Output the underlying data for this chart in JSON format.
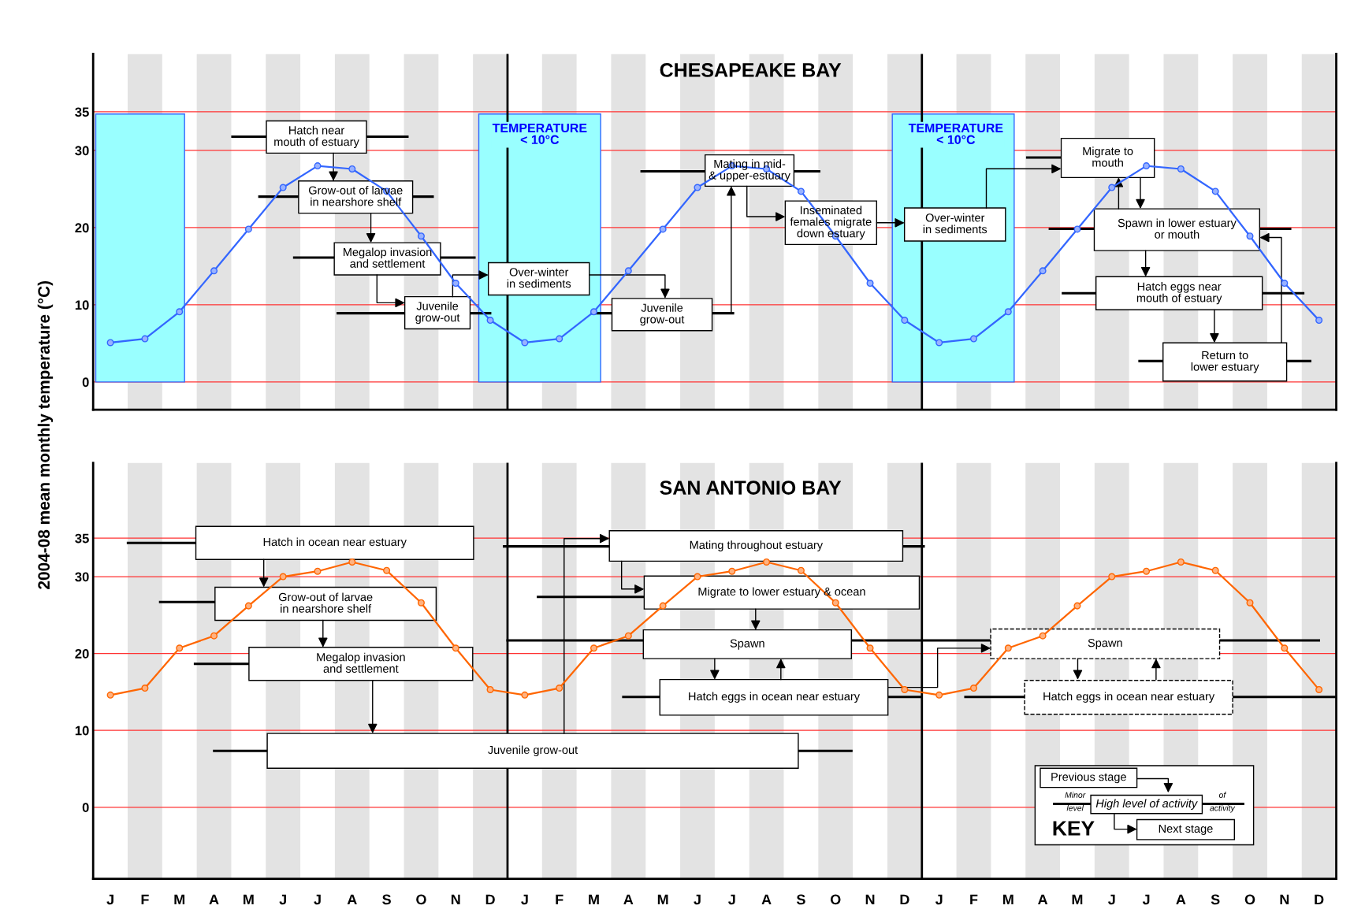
{
  "chart_data": [
    {
      "type": "line",
      "title": "CHESAPEAKE BAY",
      "ylabel": "2004-08 mean monthly temperature (°C)",
      "categories": [
        null,
        null,
        null,
        null,
        null,
        null,
        null,
        null,
        null,
        null,
        null,
        null,
        null,
        null,
        null,
        null,
        null,
        null,
        null,
        null,
        null,
        null,
        null,
        null,
        null,
        null,
        null,
        null,
        null,
        null,
        null,
        null,
        null,
        null,
        null,
        null
      ],
      "tick_labels": "y",
      "ylim": [
        -3.6,
        42.5
      ],
      "yticks": [
        0,
        10,
        20,
        30,
        35
      ],
      "grid": "y",
      "marker": "circle",
      "series": [
        {
          "color": "#3366ff",
          "values": [
            5.1,
            5.6,
            9.1,
            14.4,
            19.8,
            25.2,
            28.0,
            27.6,
            24.7,
            18.9,
            12.8,
            8.0,
            5.1,
            5.6,
            9.1,
            14.4,
            19.8,
            25.2,
            28.0,
            27.6,
            24.7,
            18.9,
            12.8,
            8.0,
            5.1,
            5.6,
            9.1,
            14.4,
            19.8,
            25.2,
            28.0,
            27.6,
            24.7,
            18.9,
            12.8,
            8.0
          ]
        }
      ],
      "annotations": [
        "Hatch near\nmouth of estuary",
        "Grow-out of larvae\nin nearshore shelf",
        "Megalop invasion\nand settlement",
        "Juvenile\ngrow-out",
        "Over-winter\nin sediments",
        "Juvenile\ngrow-out",
        "Mating in mid-\n& upper-estuary",
        "Inseminated\nfemales migrate\ndown estuary",
        "Over-winter\nin sediments",
        "Migrate to\nmouth",
        "Spawn in lower estuary\nor mouth",
        "Hatch eggs near\nmouth of estuary",
        "Return to\nlower estuary",
        "TEMPERATURE\n< 10°C",
        "TEMPERATURE\n< 10°C"
      ]
    },
    {
      "type": "line",
      "title": "SAN ANTONIO BAY",
      "categories": [
        "J",
        "F",
        "M",
        "A",
        "M",
        "J",
        "J",
        "A",
        "S",
        "O",
        "N",
        "D",
        "J",
        "F",
        "M",
        "A",
        "M",
        "J",
        "J",
        "A",
        "S",
        "O",
        "N",
        "D",
        "J",
        "F",
        "M",
        "A",
        "M",
        "J",
        "J",
        "A",
        "S",
        "O",
        "N",
        "D"
      ],
      "ylim": [
        -9.3,
        44.8
      ],
      "yticks": [
        0,
        10,
        20,
        30,
        35
      ],
      "grid": "y",
      "marker": "circle",
      "series": [
        {
          "color": "#ff6600",
          "values": [
            14.6,
            15.5,
            20.7,
            22.3,
            26.2,
            30.0,
            30.7,
            31.9,
            30.8,
            26.6,
            20.7,
            15.3,
            14.6,
            15.5,
            20.7,
            22.3,
            26.2,
            30.0,
            30.7,
            31.9,
            30.8,
            26.6,
            20.7,
            15.3,
            14.6,
            15.5,
            20.7,
            22.3,
            26.2,
            30.0,
            30.7,
            31.9,
            30.8,
            26.6,
            20.7,
            15.3
          ]
        }
      ],
      "annotations": [
        "Hatch in ocean near estuary",
        "Grow-out of larvae\nin nearshore shelf",
        "Megalop invasion\nand settlement",
        "Juvenile grow-out",
        "Mating throughout estuary",
        "Migrate to lower estuary & ocean",
        "Spawn",
        "Hatch eggs in ocean near estuary",
        "Spawn",
        "Hatch eggs in ocean near estuary",
        "Previous stage",
        "Minor\nlevel",
        "High level of activity",
        "of\nactivity",
        "KEY",
        "Next stage"
      ]
    }
  ]
}
